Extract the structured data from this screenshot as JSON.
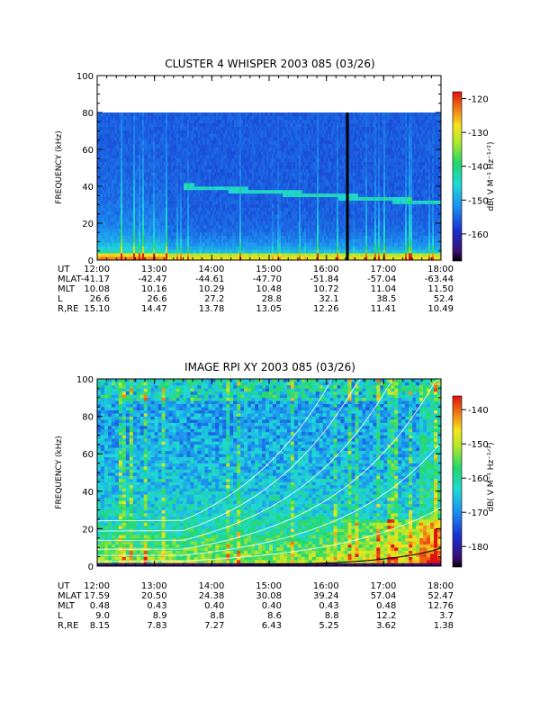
{
  "chart_data": [
    {
      "type": "heatmap",
      "title": "CLUSTER 4 WHISPER 2003 085 (03/26)",
      "ylabel": "FREQUENCY (kHz)",
      "ylim": [
        0,
        100
      ],
      "y_ticks": [
        "0",
        "20",
        "40",
        "60",
        "80",
        "100"
      ],
      "x_ticks": [
        "12:00",
        "13:00",
        "14:00",
        "15:00",
        "16:00",
        "17:00",
        "18:00"
      ],
      "data_max_frequency": 80,
      "colorbar": {
        "label": "dB( V M⁻¹ Hz⁻¹ᐟ²)",
        "range": [
          -168,
          -118
        ],
        "ticks": [
          "-120",
          "-130",
          "-140",
          "-150",
          "-160"
        ]
      },
      "ephemeris": [
        {
          "label": "UT",
          "values": [
            "12:00",
            "13:00",
            "14:00",
            "15:00",
            "16:00",
            "17:00",
            "18:00"
          ]
        },
        {
          "label": "MLAT",
          "values": [
            "-41.17",
            "-42.47",
            "-44.61",
            "-47.70",
            "-51.84",
            "-57.04",
            "-63.44"
          ]
        },
        {
          "label": "MLT",
          "values": [
            "10.08",
            "10.16",
            "10.29",
            "10.48",
            "10.72",
            "11.04",
            "11.50"
          ]
        },
        {
          "label": "L",
          "values": [
            "26.6",
            "26.6",
            "27.2",
            "28.8",
            "32.1",
            "38.5",
            "52.4"
          ]
        },
        {
          "label": "R,RE",
          "values": [
            "15.10",
            "14.47",
            "13.78",
            "13.05",
            "12.26",
            "11.41",
            "10.49"
          ]
        }
      ],
      "features": {
        "emission_line_khz": {
          "start": 43,
          "end": 31
        },
        "data_gap_time": "16:22"
      }
    },
    {
      "type": "heatmap",
      "title": "IMAGE RPI XY 2003 085 (03/26)",
      "ylabel": "FREQUENCY (kHz)",
      "ylim": [
        0,
        100
      ],
      "y_ticks": [
        "0",
        "20",
        "40",
        "60",
        "80",
        "100"
      ],
      "x_ticks": [
        "12:00",
        "13:00",
        "14:00",
        "15:00",
        "16:00",
        "17:00",
        "18:00"
      ],
      "colorbar": {
        "label": "dB( V M⁻¹ Hz⁻¹ᐟ²)",
        "range": [
          -186,
          -136
        ],
        "ticks": [
          "-140",
          "-150",
          "-160",
          "-170",
          "-180"
        ]
      },
      "ephemeris": [
        {
          "label": "UT",
          "values": [
            "12:00",
            "13:00",
            "14:00",
            "15:00",
            "16:00",
            "17:00",
            "18:00"
          ]
        },
        {
          "label": "MLAT",
          "values": [
            "17.59",
            "20.50",
            "24.38",
            "30.08",
            "39.24",
            "57.04",
            "52.47"
          ]
        },
        {
          "label": "MLT",
          "values": [
            "0.48",
            "0.43",
            "0.40",
            "0.40",
            "0.43",
            "0.48",
            "12.76"
          ]
        },
        {
          "label": "L",
          "values": [
            "9.0",
            "8.9",
            "8.8",
            "8.6",
            "8.8",
            "12.2",
            "3.7"
          ]
        },
        {
          "label": "R,RE",
          "values": [
            "8.15",
            "7.83",
            "7.27",
            "6.43",
            "5.25",
            "3.62",
            "1.38"
          ]
        }
      ],
      "overlay_curves": "white plasma-frequency harmonic curves rising steeply after 16:00"
    }
  ]
}
